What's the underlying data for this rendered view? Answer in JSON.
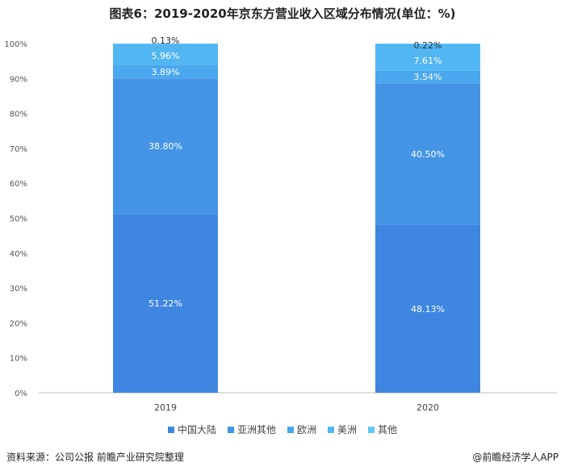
{
  "chart_data": {
    "type": "bar",
    "stacked": true,
    "title": "图表6：2019-2020年京东方营业收入区域分布情况(单位：%)",
    "categories": [
      "2019",
      "2020"
    ],
    "ylim": [
      0,
      100
    ],
    "yticks": [
      "0%",
      "10%",
      "20%",
      "30%",
      "40%",
      "50%",
      "60%",
      "70%",
      "80%",
      "90%",
      "100%"
    ],
    "grid": false,
    "legend_position": "bottom",
    "series": [
      {
        "name": "中国大陆",
        "values": [
          51.22,
          48.13
        ],
        "labels": [
          "51.22%",
          "48.13%"
        ],
        "color": "#3f86e0"
      },
      {
        "name": "亚洲其他",
        "values": [
          38.8,
          40.5
        ],
        "labels": [
          "38.80%",
          "40.50%"
        ],
        "color": "#4494e6"
      },
      {
        "name": "欧洲",
        "values": [
          3.89,
          3.54
        ],
        "labels": [
          "3.89%",
          "3.54%"
        ],
        "color": "#4aa8ee"
      },
      {
        "name": "美洲",
        "values": [
          5.96,
          7.61
        ],
        "labels": [
          "5.96%",
          "7.61%"
        ],
        "color": "#52b6f2"
      },
      {
        "name": "其他",
        "values": [
          0.13,
          0.22
        ],
        "labels": [
          "0.13%",
          "0.22%"
        ],
        "color": "#62c8f5"
      }
    ]
  },
  "footer": {
    "source": "资料来源：公司公报 前瞻产业研究院整理",
    "brand": "@前瞻经济学人APP"
  }
}
